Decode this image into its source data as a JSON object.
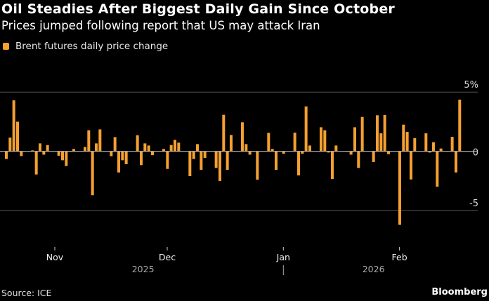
{
  "title": "Oil Steadies After Biggest Daily Gain Since October",
  "subtitle": "Prices jumped following report that US may attack Iran",
  "source": "Source: ICE",
  "brand": "Bloomberg",
  "chart_data": {
    "type": "bar",
    "title": "Oil Steadies After Biggest Daily Gain Since October",
    "subtitle": "Prices jumped following report that US may attack Iran",
    "legend": [
      {
        "name": "Brent futures daily price change",
        "color": "#f5a030"
      }
    ],
    "legend_placement": "top-left",
    "series": [
      {
        "name": "Brent futures daily price change",
        "color": "#f5a030",
        "values": [
          -0.65,
          1.16,
          4.3,
          2.5,
          -0.4,
          null,
          null,
          0.08,
          -1.95,
          0.67,
          -0.28,
          0.53,
          null,
          null,
          -0.37,
          -0.75,
          -1.24,
          0,
          0.2,
          null,
          null,
          0.37,
          1.78,
          -3.7,
          0.67,
          1.85,
          null,
          null,
          -0.41,
          1.2,
          -1.78,
          -0.75,
          -1.08,
          null,
          null,
          1.36,
          -1.16,
          0.67,
          0.49,
          -0.32,
          null,
          null,
          0.2,
          -1.48,
          0.53,
          0.97,
          0.73,
          null,
          null,
          -2.09,
          -0.65,
          0.61,
          -1.56,
          -0.55,
          null,
          null,
          -1.4,
          -2.5,
          3.08,
          -1.56,
          1.38,
          null,
          null,
          2.45,
          0.61,
          -0.28,
          0,
          -2.39,
          null,
          null,
          1.56,
          0.2,
          -1.56,
          0,
          -0.2,
          null,
          null,
          1.58,
          -2.03,
          -0.2,
          3.79,
          0.49,
          null,
          null,
          2.03,
          1.78,
          -0.1,
          -2.33,
          0.49,
          null,
          null,
          0,
          -0.28,
          2.03,
          -1.4,
          2.9,
          null,
          null,
          -0.9,
          3.04,
          1.52,
          3.06,
          -0.24,
          null,
          null,
          -6.2,
          2.25,
          1.64,
          -2.37,
          1.12,
          null,
          null,
          1.52,
          -0.1,
          0.77,
          -2.98,
          0.24,
          null,
          null,
          1.22,
          -1.78,
          4.36
        ]
      }
    ],
    "ylim": [
      -6.5,
      5
    ],
    "yticks": [
      {
        "value": 5,
        "label": "5%"
      },
      {
        "value": 0,
        "label": "0"
      },
      {
        "value": -5,
        "label": "-5"
      }
    ],
    "xticks": [
      {
        "label": "Nov",
        "slot": 12
      },
      {
        "label": "Dec",
        "slot": 42
      },
      {
        "label": "Jan",
        "slot": 73
      },
      {
        "label": "Feb",
        "slot": 104
      }
    ],
    "year_labels": [
      {
        "label": "2025",
        "slot": 36.5
      },
      {
        "label": "2026",
        "slot": 98
      }
    ],
    "year_separator_slot": 73,
    "grid": true,
    "xlabel": "",
    "ylabel": ""
  }
}
